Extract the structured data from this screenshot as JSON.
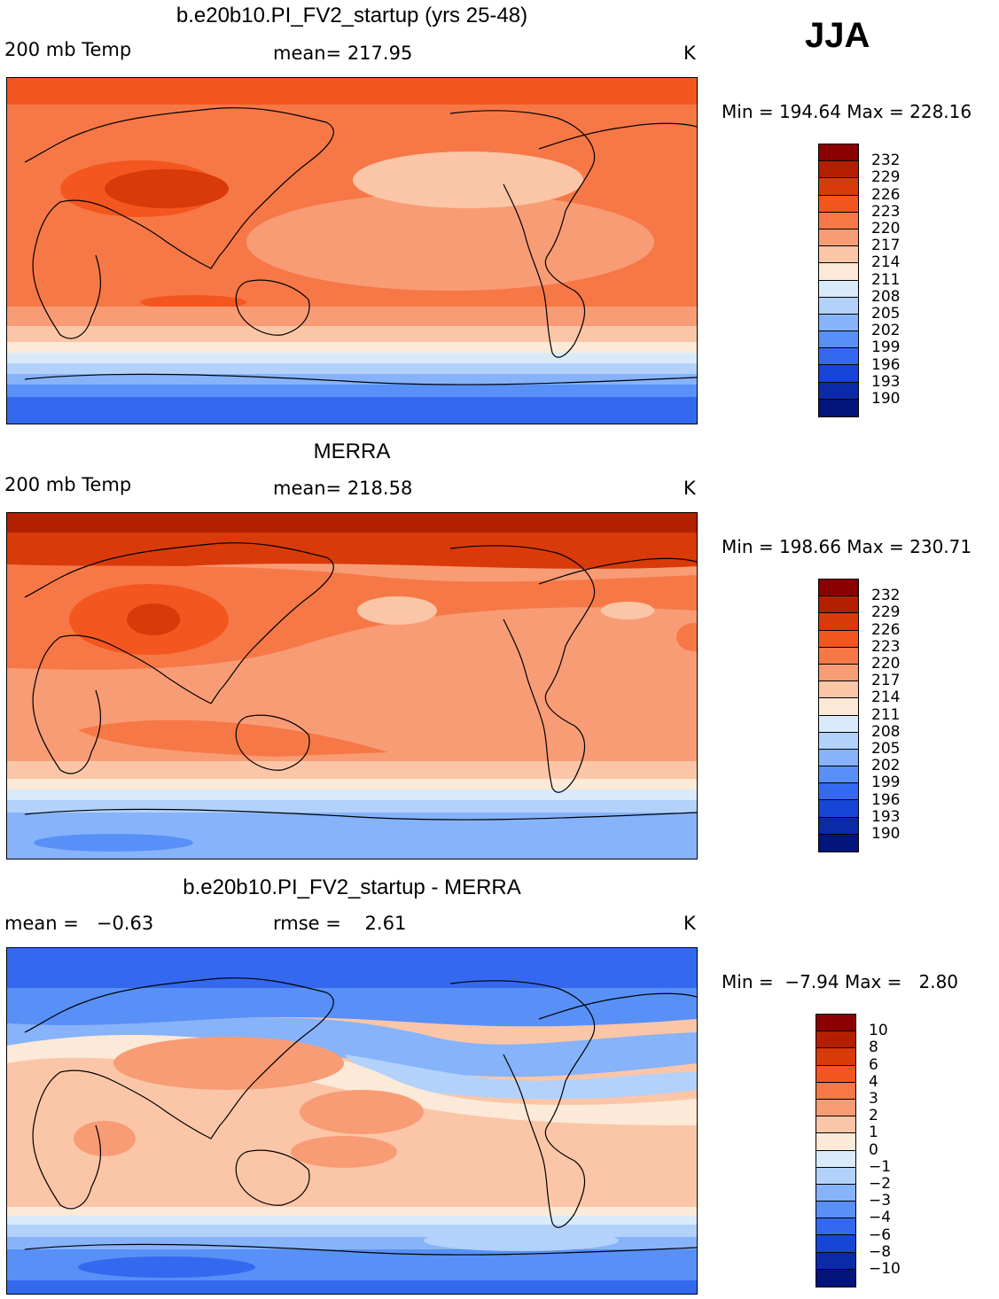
{
  "season": "JJA",
  "panels": [
    {
      "id": "model",
      "title": "b.e20b10.PI_FV2_startup (yrs 25-48)",
      "left_label": "200 mb Temp",
      "center_label": "mean= 217.95",
      "units": "K",
      "minmax": "Min = 194.64 Max = 228.16",
      "colorbar": {
        "colors": [
          "#8b0000",
          "#b22000",
          "#d93a0a",
          "#f4561f",
          "#f67846",
          "#f89c76",
          "#fbc6a7",
          "#fde9d8",
          "#d9ebfa",
          "#b2d2fb",
          "#86b3fa",
          "#5890f7",
          "#3469ef",
          "#1746d6",
          "#0a2aa8",
          "#03157a"
        ],
        "labels": [
          "232",
          "229",
          "226",
          "223",
          "220",
          "217",
          "214",
          "211",
          "208",
          "205",
          "202",
          "199",
          "196",
          "193",
          "190"
        ]
      }
    },
    {
      "id": "obs",
      "title": "MERRA",
      "left_label": "200 mb Temp",
      "center_label": "mean= 218.58",
      "units": "K",
      "minmax": "Min = 198.66 Max = 230.71",
      "colorbar": {
        "colors": [
          "#8b0000",
          "#b22000",
          "#d93a0a",
          "#f4561f",
          "#f67846",
          "#f89c76",
          "#fbc6a7",
          "#fde9d8",
          "#d9ebfa",
          "#b2d2fb",
          "#86b3fa",
          "#5890f7",
          "#3469ef",
          "#1746d6",
          "#0a2aa8",
          "#03157a"
        ],
        "labels": [
          "232",
          "229",
          "226",
          "223",
          "220",
          "217",
          "214",
          "211",
          "208",
          "205",
          "202",
          "199",
          "196",
          "193",
          "190"
        ]
      }
    },
    {
      "id": "diff",
      "title": "b.e20b10.PI_FV2_startup - MERRA",
      "left_label": "mean =   −0.63",
      "center_label": "rmse =    2.61",
      "units": "K",
      "minmax": "Min =  −7.94 Max =   2.80",
      "colorbar": {
        "colors": [
          "#8b0000",
          "#b22000",
          "#d93a0a",
          "#f4561f",
          "#f67846",
          "#f89c76",
          "#fbc6a7",
          "#fde9d8",
          "#d9ebfa",
          "#b2d2fb",
          "#86b3fa",
          "#5890f7",
          "#3469ef",
          "#1746d6",
          "#0a2aa8",
          "#03157a"
        ],
        "labels": [
          "10",
          "8",
          "6",
          "4",
          "3",
          "2",
          "1",
          "0",
          "−1",
          "−2",
          "−3",
          "−4",
          "−6",
          "−8",
          "−10"
        ]
      }
    }
  ]
}
